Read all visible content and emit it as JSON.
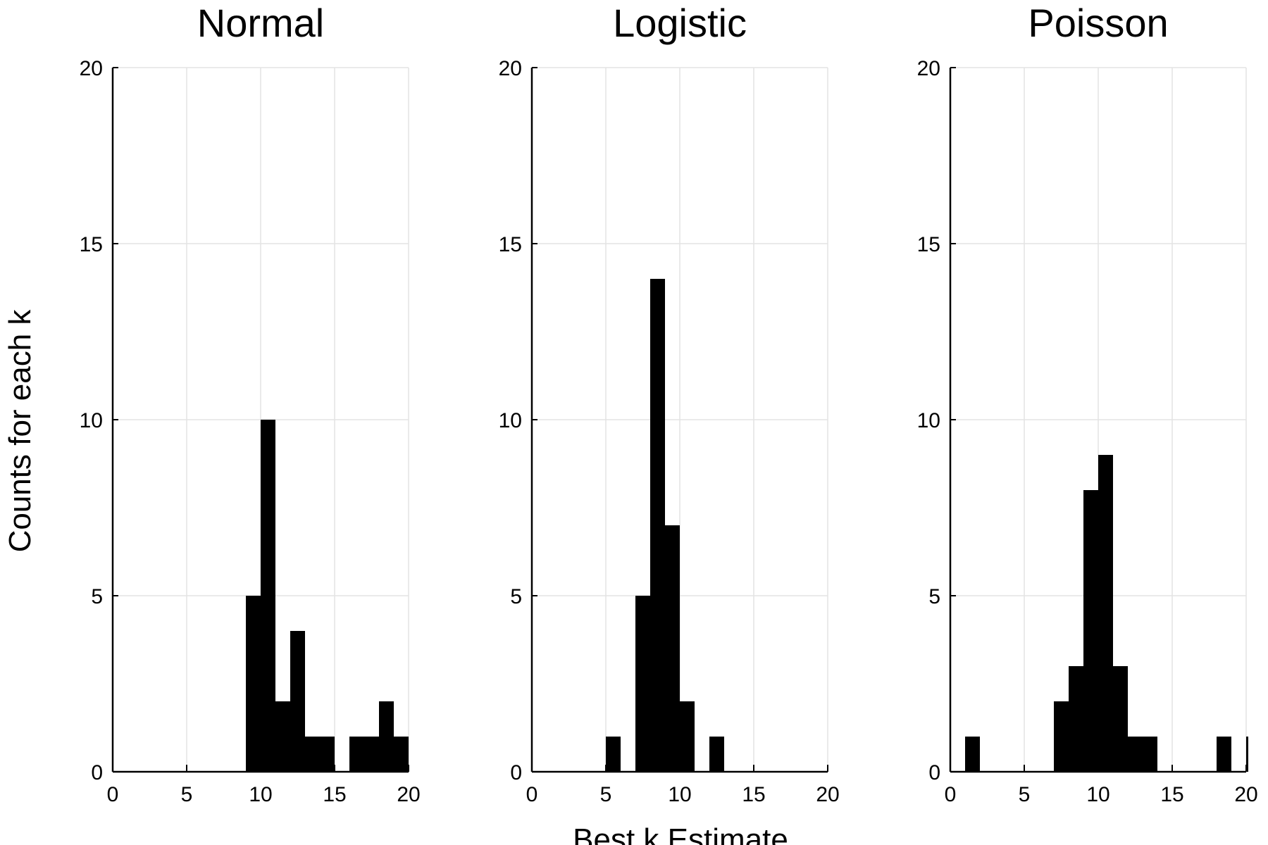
{
  "figure": {
    "ylabel": "Counts for each k",
    "xlabel": "Best k Estimate"
  },
  "chart_data": [
    {
      "type": "bar",
      "title": "Normal",
      "xlim": [
        0,
        20
      ],
      "ylim": [
        0,
        20
      ],
      "xticks": [
        0,
        5,
        10,
        15,
        20
      ],
      "yticks": [
        0,
        5,
        10,
        15,
        20
      ],
      "grid": true,
      "color": "#000000",
      "bins": [
        {
          "x0": 9,
          "x1": 10,
          "value": 5
        },
        {
          "x0": 10,
          "x1": 11,
          "value": 10
        },
        {
          "x0": 11,
          "x1": 12,
          "value": 2
        },
        {
          "x0": 12,
          "x1": 13,
          "value": 4
        },
        {
          "x0": 13,
          "x1": 14,
          "value": 1
        },
        {
          "x0": 14,
          "x1": 15,
          "value": 1
        },
        {
          "x0": 16,
          "x1": 17,
          "value": 1
        },
        {
          "x0": 17,
          "x1": 18,
          "value": 1
        },
        {
          "x0": 18,
          "x1": 19,
          "value": 2
        },
        {
          "x0": 19,
          "x1": 20,
          "value": 1
        }
      ]
    },
    {
      "type": "bar",
      "title": "Logistic",
      "xlim": [
        0,
        20
      ],
      "ylim": [
        0,
        20
      ],
      "xticks": [
        0,
        5,
        10,
        15,
        20
      ],
      "yticks": [
        0,
        5,
        10,
        15,
        20
      ],
      "grid": true,
      "color": "#000000",
      "bins": [
        {
          "x0": 5,
          "x1": 6,
          "value": 1
        },
        {
          "x0": 7,
          "x1": 8,
          "value": 5
        },
        {
          "x0": 8,
          "x1": 9,
          "value": 14
        },
        {
          "x0": 9,
          "x1": 10,
          "value": 7
        },
        {
          "x0": 10,
          "x1": 11,
          "value": 2
        },
        {
          "x0": 12,
          "x1": 13,
          "value": 1
        }
      ]
    },
    {
      "type": "bar",
      "title": "Poisson",
      "xlim": [
        0,
        20
      ],
      "ylim": [
        0,
        20
      ],
      "xticks": [
        0,
        5,
        10,
        15,
        20
      ],
      "yticks": [
        0,
        5,
        10,
        15,
        20
      ],
      "grid": true,
      "color": "#000000",
      "bins": [
        {
          "x0": 1,
          "x1": 2,
          "value": 1
        },
        {
          "x0": 7,
          "x1": 8,
          "value": 2
        },
        {
          "x0": 8,
          "x1": 9,
          "value": 3
        },
        {
          "x0": 9,
          "x1": 10,
          "value": 8
        },
        {
          "x0": 10,
          "x1": 11,
          "value": 9
        },
        {
          "x0": 11,
          "x1": 12,
          "value": 3
        },
        {
          "x0": 12,
          "x1": 13,
          "value": 1
        },
        {
          "x0": 13,
          "x1": 14,
          "value": 1
        },
        {
          "x0": 18,
          "x1": 19,
          "value": 1
        },
        {
          "x0": 20,
          "x1": 21,
          "value": 1
        }
      ]
    }
  ]
}
